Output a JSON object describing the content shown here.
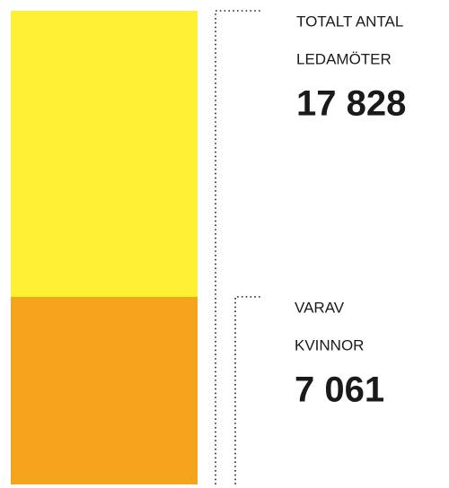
{
  "chart_data": {
    "type": "overlay-bar",
    "labels": [
      [
        "TOTALT ANTAL",
        "LEDAMÖTER"
      ],
      [
        "VARAV",
        "KVINNOR"
      ]
    ],
    "values": [
      17828,
      7061
    ],
    "value_labels": [
      "17 828",
      "7 061"
    ],
    "colors": [
      "#fef034",
      "#f6a31e"
    ]
  }
}
